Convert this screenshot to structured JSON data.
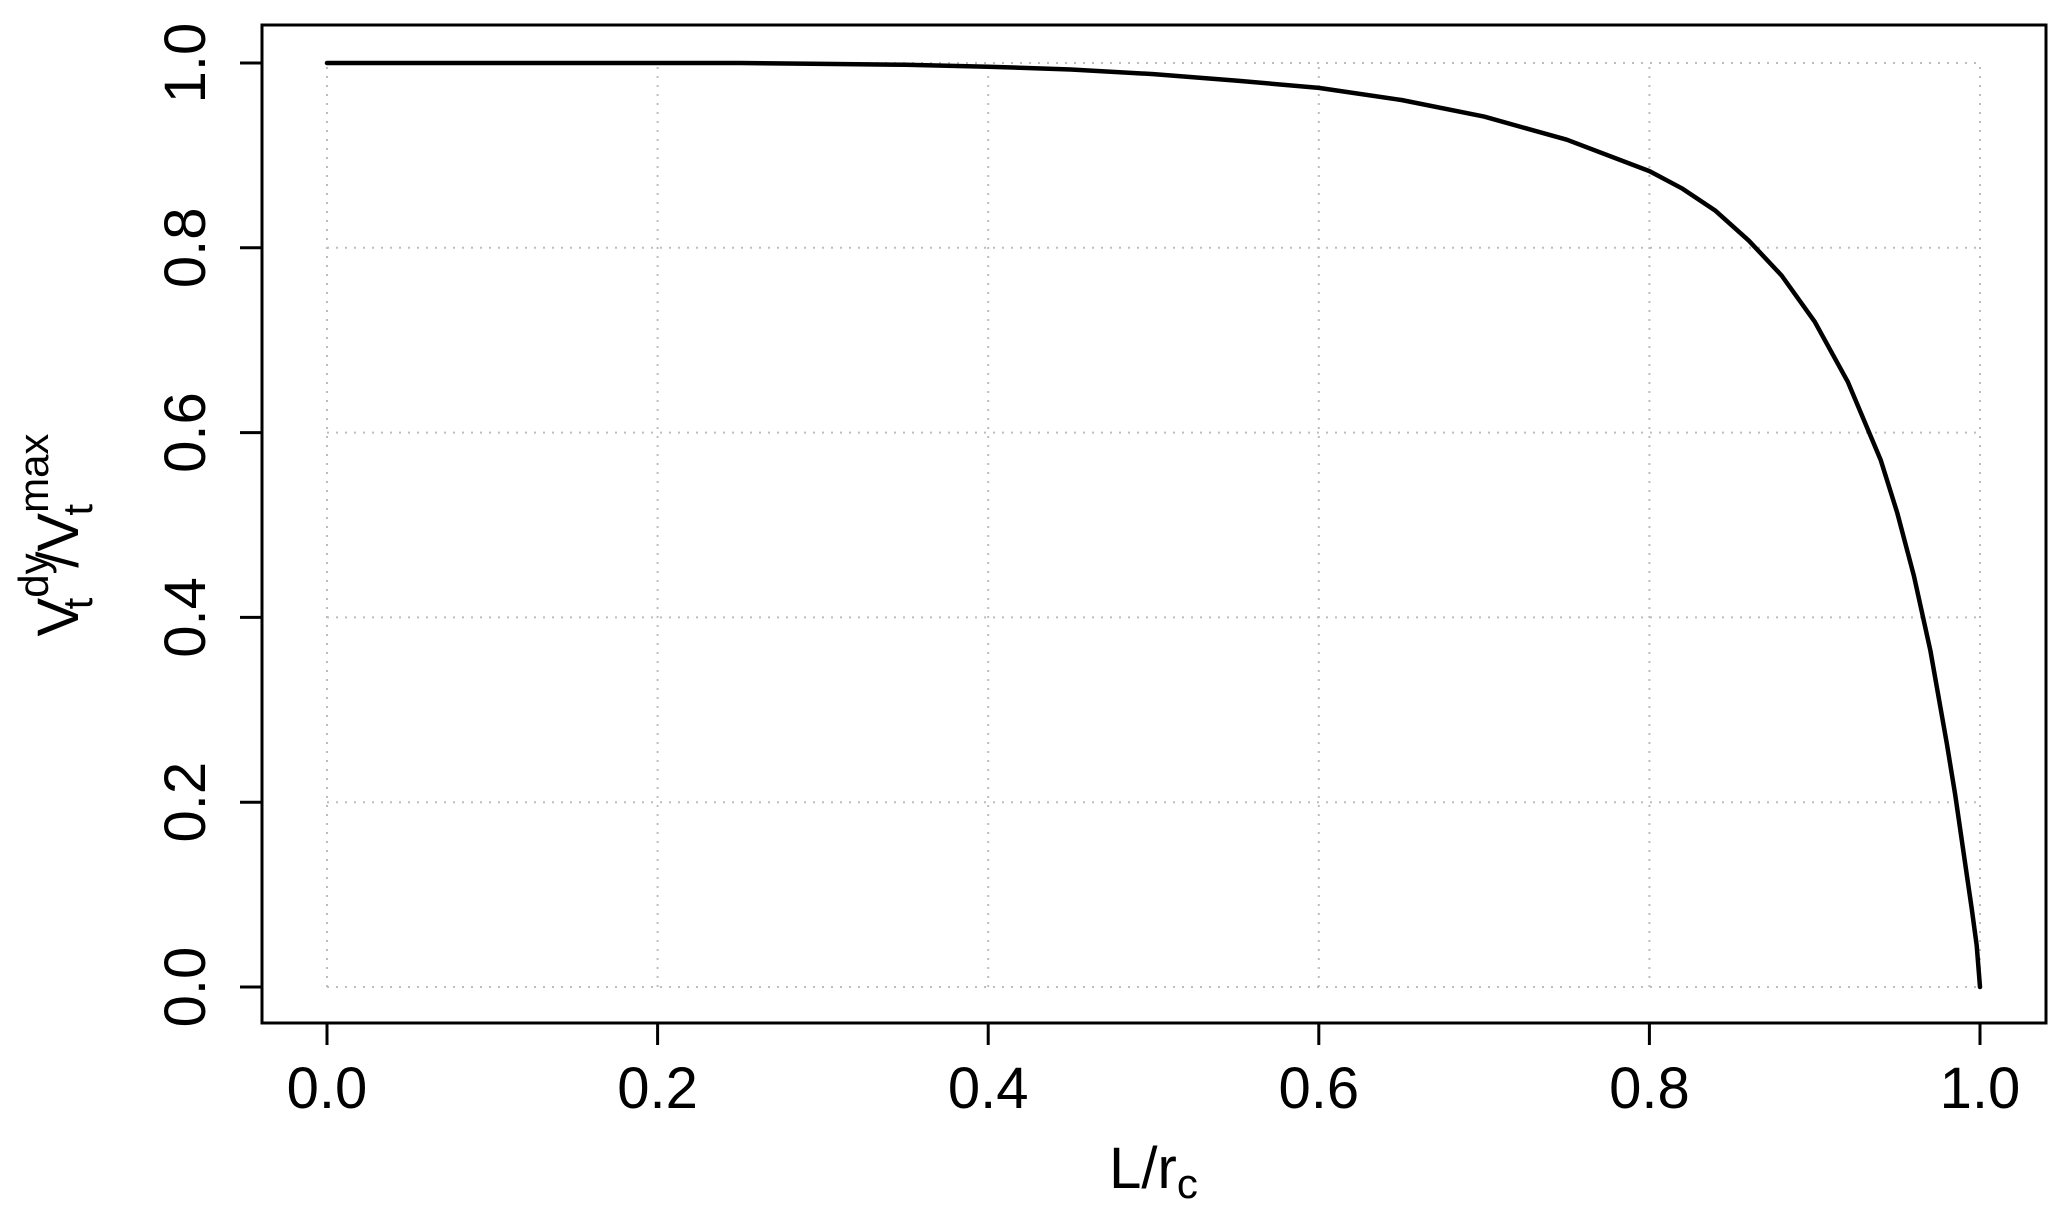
{
  "chart_data": {
    "type": "line",
    "title": "",
    "xlabel": {
      "main": "L",
      "sep": "/",
      "var": "r",
      "sub": "c"
    },
    "ylabel": {
      "v1": "V",
      "v1_sub": "t",
      "v1_sup": "dy",
      "sep": "/",
      "v2": "V",
      "v2_sub": "t",
      "v2_sup": "max"
    },
    "xlim": [
      0.0,
      1.0
    ],
    "ylim": [
      0.0,
      1.0
    ],
    "x_ticks": [
      0.0,
      0.2,
      0.4,
      0.6,
      0.8,
      1.0
    ],
    "y_ticks": [
      0.0,
      0.2,
      0.4,
      0.6,
      0.8,
      1.0
    ],
    "x_tick_labels": [
      "0.0",
      "0.2",
      "0.4",
      "0.6",
      "0.8",
      "1.0"
    ],
    "y_tick_labels": [
      "0.0",
      "0.2",
      "0.4",
      "0.6",
      "0.8",
      "1.0"
    ],
    "grid": true,
    "legend": "none",
    "colors": {
      "line": "#000000",
      "grid": "#bdbdbd",
      "frame": "#000000"
    },
    "series": [
      {
        "x": [
          0.0,
          0.05,
          0.1,
          0.15,
          0.2,
          0.25,
          0.3,
          0.35,
          0.4,
          0.45,
          0.5,
          0.55,
          0.6,
          0.65,
          0.7,
          0.75,
          0.8,
          0.82,
          0.84,
          0.86,
          0.88,
          0.9,
          0.92,
          0.94,
          0.95,
          0.96,
          0.97,
          0.98,
          0.985,
          0.99,
          0.995,
          0.998,
          1.0
        ],
        "y": [
          1.0,
          1.0,
          1.0,
          1.0,
          1.0,
          1.0,
          0.999,
          0.998,
          0.996,
          0.993,
          0.988,
          0.981,
          0.973,
          0.96,
          0.942,
          0.917,
          0.883,
          0.864,
          0.84,
          0.808,
          0.77,
          0.72,
          0.655,
          0.57,
          0.513,
          0.445,
          0.364,
          0.263,
          0.208,
          0.146,
          0.085,
          0.045,
          0.0
        ]
      }
    ]
  }
}
